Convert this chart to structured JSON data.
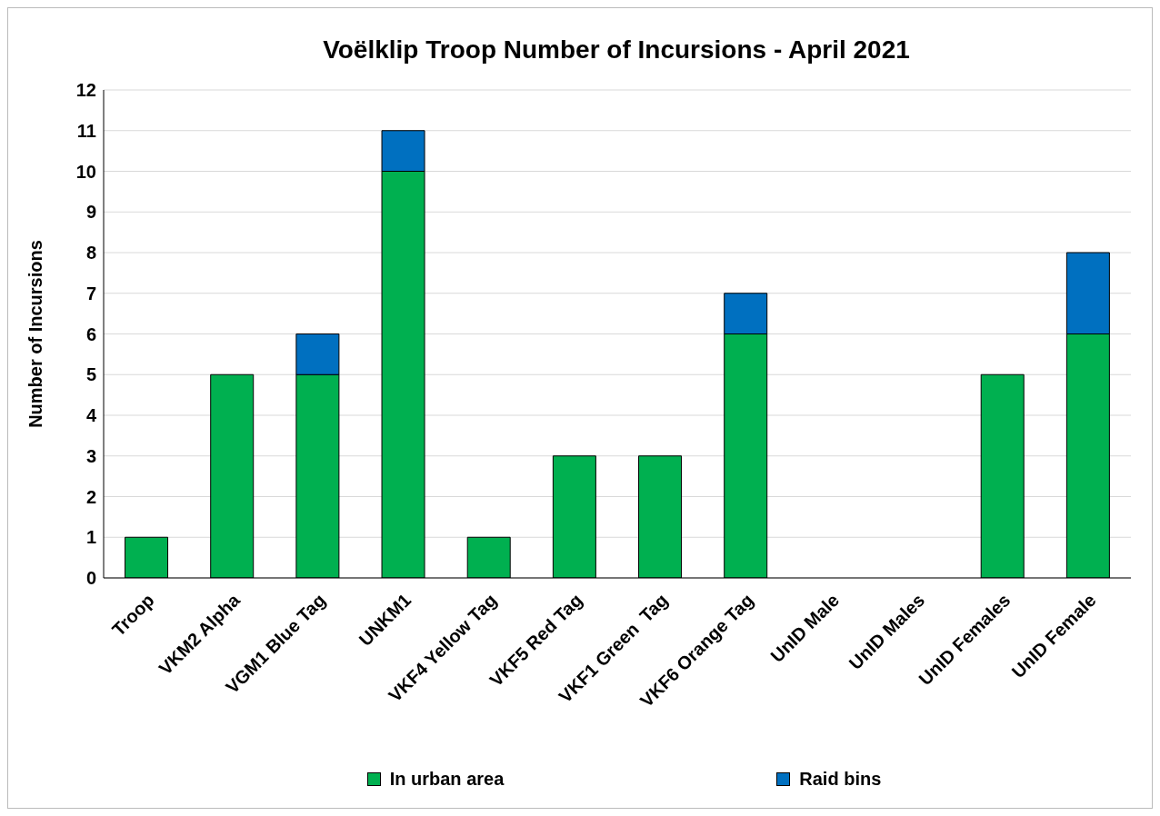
{
  "chart_data": {
    "type": "bar",
    "title": "Voëlklip Troop Number of Incursions - April 2021",
    "ylabel": "Number of Incursions",
    "categories": [
      "Troop",
      "VKM2 Alpha",
      "VGM1 Blue Tag",
      "UNKM1",
      "VKF4 Yellow Tag",
      "VKF5 Red Tag",
      "VKF1 Green  Tag",
      "VKF6 Orange Tag",
      "UnID Male",
      "UnID Males",
      "UnID Females",
      "UnID Female"
    ],
    "series": [
      {
        "name": "In urban area",
        "color": "#00b050",
        "values": [
          1,
          5,
          5,
          10,
          1,
          3,
          3,
          6,
          0,
          0,
          5,
          6
        ]
      },
      {
        "name": "Raid bins",
        "color": "#0070c0",
        "values": [
          null,
          null,
          1,
          1,
          null,
          null,
          null,
          1,
          null,
          null,
          null,
          2
        ]
      }
    ],
    "stacked": true,
    "ylim": [
      0,
      12
    ],
    "yticks": [
      0,
      1,
      2,
      3,
      4,
      5,
      6,
      7,
      8,
      9,
      10,
      11,
      12
    ],
    "grid": "y",
    "legend": "bottom"
  }
}
